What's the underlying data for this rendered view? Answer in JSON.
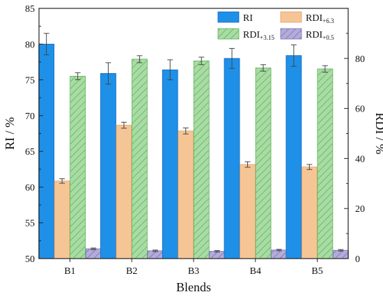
{
  "chart_data": {
    "type": "bar",
    "xlabel": "Blends",
    "ylabel_left": "RI / %",
    "ylabel_right": "RDI / %",
    "categories": [
      "B1",
      "B2",
      "B3",
      "B4",
      "B5"
    ],
    "left_axis": {
      "range": [
        50,
        85
      ],
      "ticks": [
        50,
        55,
        60,
        65,
        70,
        75,
        80,
        85
      ]
    },
    "right_axis": {
      "range": [
        0,
        100
      ],
      "ticks": [
        0,
        20,
        40,
        60,
        80
      ]
    },
    "grid": false,
    "legend_position": "top-right",
    "series": [
      {
        "key": "ri",
        "name_main": "RI",
        "name_sub": "",
        "axis": "left",
        "color": "#1e90e8",
        "edge": "#1565c0",
        "pattern": "solid",
        "values": [
          80.0,
          75.9,
          76.4,
          78.0,
          78.4
        ],
        "errors": [
          1.5,
          1.5,
          1.4,
          1.4,
          1.5
        ]
      },
      {
        "key": "rdi63",
        "name_main": "RDI",
        "name_sub": "+6.3",
        "axis": "right",
        "color": "#f6c596",
        "edge": "#e0a060",
        "pattern": "solid",
        "values": [
          31.0,
          53.3,
          51.0,
          37.6,
          36.6
        ],
        "errors": [
          0.9,
          1.2,
          1.2,
          1.1,
          1.0
        ]
      },
      {
        "key": "rdi315",
        "name_main": "RDI",
        "name_sub": "+3.15",
        "axis": "right",
        "color": "#a9dba4",
        "edge": "#5fb35a",
        "pattern": "hatch",
        "values": [
          72.9,
          79.7,
          79.0,
          76.2,
          75.8
        ],
        "errors": [
          1.4,
          1.4,
          1.5,
          1.3,
          1.3
        ]
      },
      {
        "key": "rdi05",
        "name_main": "RDI",
        "name_sub": "+0.5",
        "axis": "right",
        "color": "#b3acd9",
        "edge": "#7a6fb5",
        "pattern": "hatch",
        "values": [
          3.9,
          3.1,
          2.9,
          3.4,
          3.3
        ],
        "errors": [
          0.3,
          0.3,
          0.3,
          0.3,
          0.3
        ]
      }
    ]
  }
}
